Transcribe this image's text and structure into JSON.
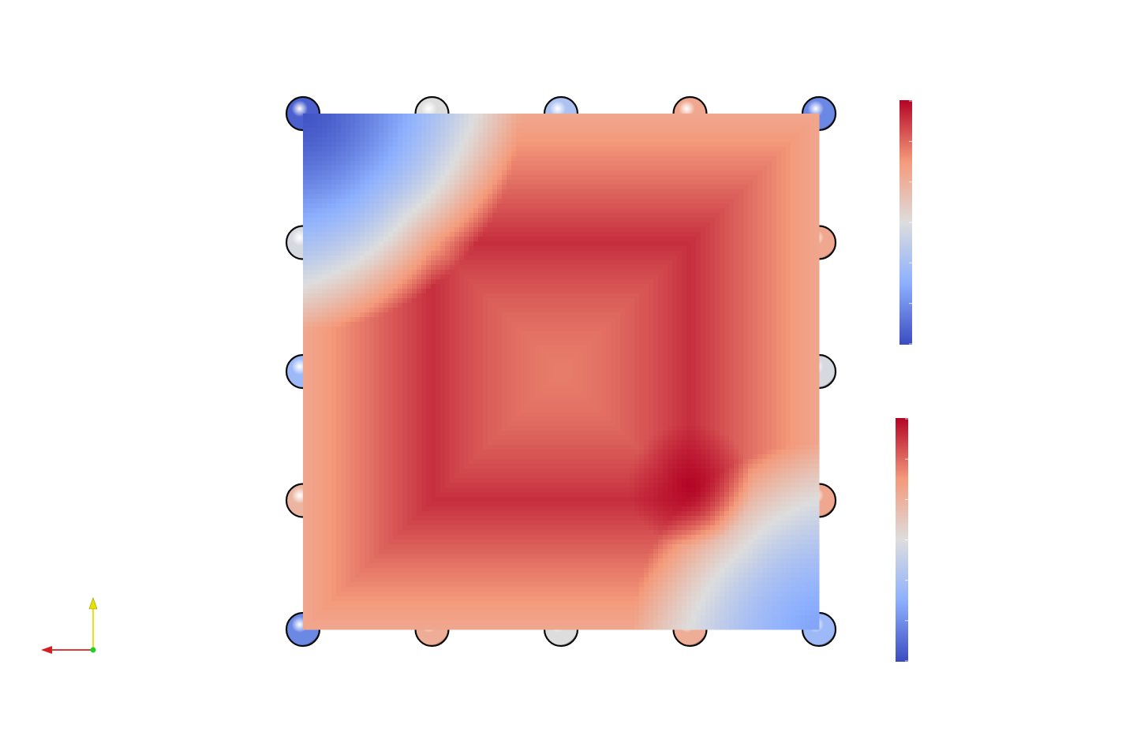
{
  "scene": {
    "grid": {
      "rows": 5,
      "cols": 5
    },
    "sphere_level": [
      [
        0.05,
        0.5,
        0.35,
        0.7,
        0.15
      ],
      [
        0.48,
        0.85,
        0.72,
        0.88,
        0.7
      ],
      [
        0.3,
        0.72,
        0.5,
        0.72,
        0.48
      ],
      [
        0.65,
        0.92,
        0.72,
        0.97,
        0.7
      ],
      [
        0.15,
        0.68,
        0.5,
        0.68,
        0.3
      ]
    ],
    "surface_level": {
      "corner_top_left": 0.02,
      "corner_bottom_right": 0.22,
      "edge": 0.7,
      "ring": 0.93,
      "center": 0.8,
      "hotspot": 1.0
    }
  },
  "colormap": {
    "name": "cool-to-warm",
    "stops": [
      "#3b4cc0",
      "#8db0fe",
      "#dddddd",
      "#f49a7b",
      "#b40426"
    ],
    "background": "#ffffff"
  },
  "color_legends": [
    {
      "id": "upper",
      "tick_count": 7
    },
    {
      "id": "lower",
      "tick_count": 7
    }
  ],
  "orientation_axes": {
    "x_color": "#d22020",
    "y_color": "#e8e000",
    "z_color": "#20d020"
  }
}
